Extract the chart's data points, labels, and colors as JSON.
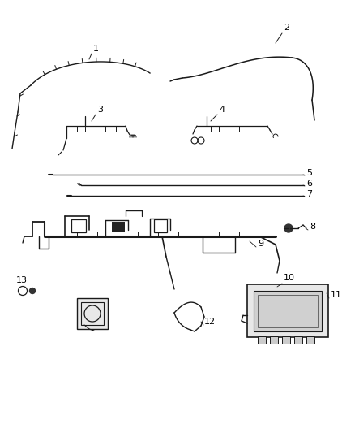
{
  "bg_color": "#ffffff",
  "label_color": "#000000",
  "wire_color": "#1a1a1a",
  "fig_width": 4.38,
  "fig_height": 5.33,
  "dpi": 100
}
